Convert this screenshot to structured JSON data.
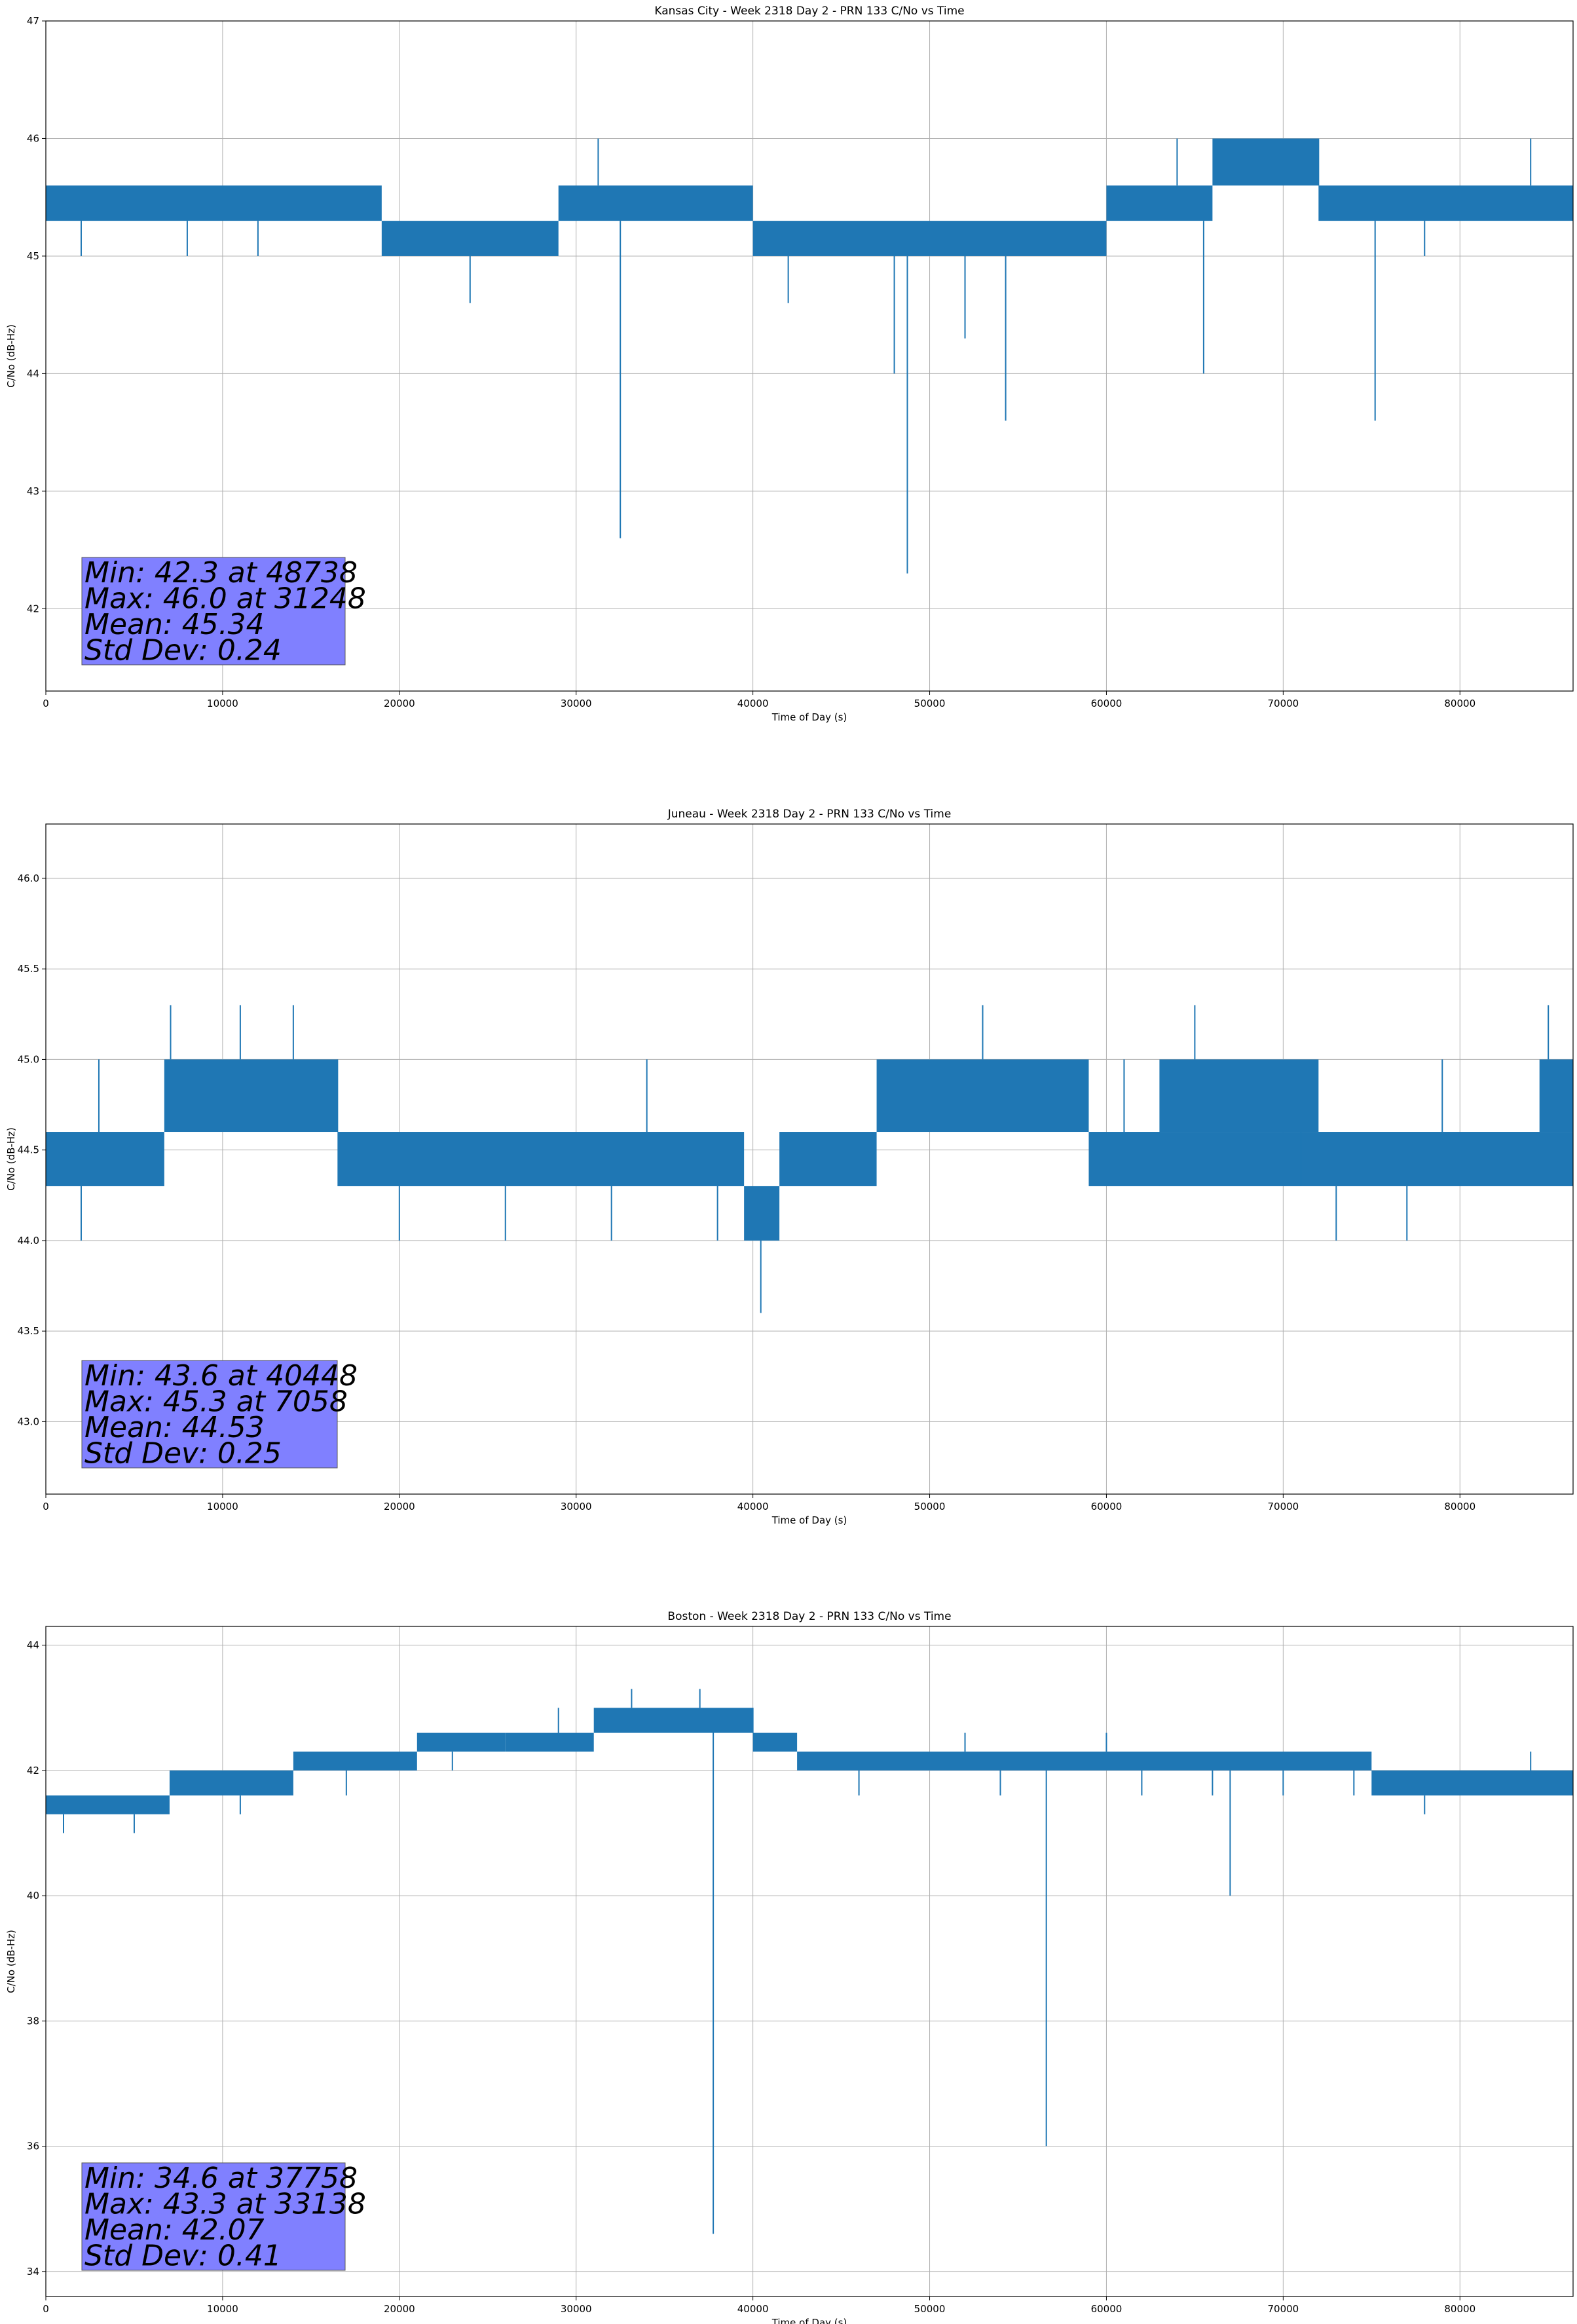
{
  "colors": {
    "series": "#1f77b4",
    "grid": "#b0b0b0",
    "statbox": "#8080ff",
    "axes": "#000000"
  },
  "chart_data": [
    {
      "type": "line",
      "title": "Kansas City - Week 2318 Day 2 - PRN 133 C/No vs Time",
      "xlabel": "Time of Day (s)",
      "ylabel": "C/No (dB-Hz)",
      "xlim": [
        0,
        86400
      ],
      "ylim": [
        41.3,
        47
      ],
      "xticks": [
        0,
        10000,
        20000,
        30000,
        40000,
        50000,
        60000,
        70000,
        80000
      ],
      "yticks": [
        "42",
        "43",
        "44",
        "45",
        "46",
        "47"
      ],
      "grid": true,
      "bands": [
        {
          "x": [
            0,
            19000
          ],
          "y": [
            45.3,
            45.6
          ]
        },
        {
          "x": [
            19000,
            29000
          ],
          "y": [
            45.0,
            45.3
          ]
        },
        {
          "x": [
            29000,
            40000
          ],
          "y": [
            45.3,
            45.6
          ]
        },
        {
          "x": [
            40000,
            60000
          ],
          "y": [
            45.0,
            45.3
          ]
        },
        {
          "x": [
            60000,
            66000
          ],
          "y": [
            45.3,
            45.6
          ]
        },
        {
          "x": [
            66000,
            72000
          ],
          "y": [
            45.6,
            46.0
          ]
        },
        {
          "x": [
            72000,
            86400
          ],
          "y": [
            45.3,
            45.6
          ]
        }
      ],
      "series": [
        {
          "x": [
            0,
            2000,
            4000,
            6000,
            8000,
            10000,
            12000,
            14000,
            16000,
            18000,
            19000,
            20000,
            22000,
            24000,
            26000,
            28000,
            30000,
            31248,
            32000,
            32500,
            33000,
            34000,
            36000,
            38000,
            40000,
            42000,
            44000,
            46000,
            48000,
            48738,
            50000,
            52000,
            54300,
            56000,
            58000,
            60000,
            62000,
            64000,
            65500,
            66000,
            68000,
            70000,
            72000,
            74000,
            75200,
            76000,
            78000,
            80000,
            82000,
            84000,
            86400
          ],
          "y": [
            45.6,
            45.0,
            45.3,
            45.6,
            45.0,
            45.3,
            45.0,
            45.6,
            45.3,
            45.6,
            45.3,
            45.0,
            45.3,
            44.6,
            45.0,
            45.3,
            45.6,
            46.0,
            45.3,
            42.6,
            45.6,
            45.3,
            45.6,
            45.3,
            45.0,
            44.6,
            45.0,
            45.3,
            44.0,
            42.3,
            45.0,
            44.3,
            43.6,
            45.0,
            45.3,
            45.6,
            45.3,
            46.0,
            44.0,
            45.6,
            46.0,
            45.6,
            46.0,
            45.3,
            43.6,
            45.3,
            45.0,
            45.6,
            45.3,
            46.0,
            45.6
          ]
        }
      ],
      "annotation": [
        "Min: 42.3 at 48738",
        "Max: 46.0 at 31248",
        "Mean: 45.34",
        "Std Dev: 0.24"
      ]
    },
    {
      "type": "line",
      "title": "Juneau - Week 2318 Day 2 - PRN 133 C/No vs Time",
      "xlabel": "Time of Day (s)",
      "ylabel": "C/No (dB-Hz)",
      "xlim": [
        0,
        86400
      ],
      "ylim": [
        42.6,
        46.3
      ],
      "xticks": [
        0,
        10000,
        20000,
        30000,
        40000,
        50000,
        60000,
        70000,
        80000
      ],
      "yticks": [
        "43.0",
        "43.5",
        "44.0",
        "44.5",
        "45.0",
        "45.5",
        "46.0"
      ],
      "grid": true,
      "bands": [
        {
          "x": [
            0,
            6700
          ],
          "y": [
            44.3,
            44.6
          ]
        },
        {
          "x": [
            6700,
            16500
          ],
          "y": [
            44.6,
            45.0
          ]
        },
        {
          "x": [
            16500,
            39500
          ],
          "y": [
            44.3,
            44.6
          ]
        },
        {
          "x": [
            39500,
            41500
          ],
          "y": [
            44.0,
            44.3
          ]
        },
        {
          "x": [
            41500,
            47000
          ],
          "y": [
            44.3,
            44.6
          ]
        },
        {
          "x": [
            47000,
            59000
          ],
          "y": [
            44.6,
            45.0
          ]
        },
        {
          "x": [
            59000,
            86400
          ],
          "y": [
            44.3,
            44.6
          ]
        },
        {
          "x": [
            63000,
            72000
          ],
          "y": [
            44.6,
            45.0
          ]
        },
        {
          "x": [
            84500,
            86400
          ],
          "y": [
            44.6,
            45.0
          ]
        }
      ],
      "series": [
        {
          "x": [
            0,
            2000,
            3000,
            5000,
            7058,
            9000,
            11000,
            13000,
            14000,
            16500,
            18000,
            20000,
            22000,
            24000,
            26000,
            28000,
            30000,
            32000,
            34000,
            36000,
            38000,
            40000,
            40448,
            41000,
            43000,
            45000,
            47000,
            49000,
            51000,
            53000,
            55000,
            57000,
            59000,
            61000,
            63000,
            65000,
            67000,
            69000,
            71000,
            73000,
            75000,
            77000,
            79000,
            81000,
            83000,
            85000,
            86400
          ],
          "y": [
            44.3,
            44.0,
            45.0,
            44.3,
            45.3,
            45.0,
            45.3,
            44.6,
            45.3,
            45.0,
            44.3,
            44.0,
            44.6,
            44.3,
            44.0,
            44.6,
            44.3,
            44.0,
            45.0,
            44.3,
            44.0,
            44.3,
            43.6,
            44.0,
            44.6,
            44.3,
            44.6,
            45.0,
            44.6,
            45.3,
            45.0,
            44.6,
            44.3,
            45.0,
            44.3,
            45.3,
            44.6,
            45.0,
            44.3,
            44.0,
            44.6,
            44.0,
            45.0,
            44.3,
            44.6,
            45.3,
            45.0
          ]
        }
      ],
      "annotation": [
        "Min: 43.6 at 40448",
        "Max: 45.3 at 7058",
        "Mean: 44.53",
        "Std Dev: 0.25"
      ]
    },
    {
      "type": "line",
      "title": "Boston - Week 2318 Day 2 - PRN 133 C/No vs Time",
      "xlabel": "Time of Day (s)",
      "ylabel": "C/No (dB-Hz)",
      "xlim": [
        0,
        86400
      ],
      "ylim": [
        33.6,
        44.3
      ],
      "xticks": [
        0,
        10000,
        20000,
        30000,
        40000,
        50000,
        60000,
        70000,
        80000
      ],
      "yticks": [
        "34",
        "36",
        "38",
        "40",
        "42",
        "44"
      ],
      "grid": true,
      "bands": [
        {
          "x": [
            0,
            7000
          ],
          "y": [
            41.3,
            41.6
          ]
        },
        {
          "x": [
            7000,
            14000
          ],
          "y": [
            41.6,
            42.0
          ]
        },
        {
          "x": [
            14000,
            21000
          ],
          "y": [
            42.0,
            42.3
          ]
        },
        {
          "x": [
            21000,
            26000
          ],
          "y": [
            42.3,
            42.6
          ]
        },
        {
          "x": [
            26000,
            31000
          ],
          "y": [
            42.3,
            42.6
          ]
        },
        {
          "x": [
            31000,
            40000
          ],
          "y": [
            42.6,
            43.0
          ]
        },
        {
          "x": [
            40000,
            42500
          ],
          "y": [
            42.3,
            42.6
          ]
        },
        {
          "x": [
            42500,
            75000
          ],
          "y": [
            42.0,
            42.3
          ]
        },
        {
          "x": [
            75000,
            86400
          ],
          "y": [
            41.6,
            42.0
          ]
        }
      ],
      "series": [
        {
          "x": [
            0,
            1000,
            3000,
            5000,
            7000,
            9000,
            11000,
            13000,
            15000,
            17000,
            19000,
            21000,
            23000,
            25000,
            27000,
            29000,
            31000,
            33138,
            35000,
            37000,
            37758,
            38500,
            40000,
            42000,
            44000,
            46000,
            48000,
            50000,
            52000,
            54000,
            56000,
            56600,
            57500,
            60000,
            62000,
            64000,
            66000,
            67000,
            68000,
            70000,
            72000,
            74000,
            76000,
            78000,
            80000,
            82000,
            84000,
            86400
          ],
          "y": [
            41.6,
            41.0,
            41.6,
            41.0,
            41.6,
            42.0,
            41.3,
            42.0,
            42.3,
            41.6,
            42.3,
            42.6,
            42.0,
            42.6,
            42.3,
            43.0,
            42.6,
            43.3,
            42.6,
            43.3,
            34.6,
            42.6,
            43.0,
            42.6,
            42.0,
            41.6,
            42.3,
            42.0,
            42.6,
            41.6,
            42.3,
            36.0,
            42.0,
            42.6,
            41.6,
            42.3,
            41.6,
            40.0,
            42.3,
            41.6,
            42.0,
            41.6,
            42.0,
            41.3,
            41.6,
            42.0,
            42.3,
            41.6
          ]
        }
      ],
      "annotation": [
        "Min: 34.6 at 37758",
        "Max: 43.3 at 33138",
        "Mean: 42.07",
        "Std Dev: 0.41"
      ]
    }
  ]
}
